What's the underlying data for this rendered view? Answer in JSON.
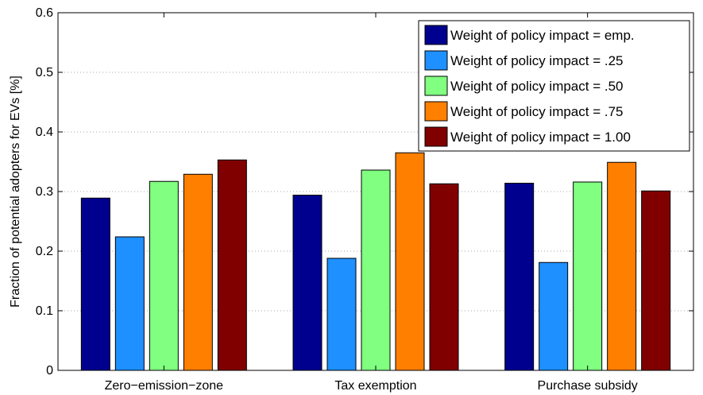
{
  "chart_data": {
    "type": "bar",
    "title": "",
    "xlabel": "",
    "ylabel": "Fraction of potential adopters for EVs [%]",
    "ylim": [
      0,
      0.6
    ],
    "yticks": [
      "0",
      "0.1",
      "0.2",
      "0.3",
      "0.4",
      "0.5",
      "0.6"
    ],
    "grid": "dotted-y",
    "legend_position": "top-right",
    "categories": [
      "Zero−emission−zone",
      "Tax exemption",
      "Purchase subsidy"
    ],
    "series": [
      {
        "name": "Weight of policy impact = emp.",
        "color": "#00008f",
        "values": [
          0.289,
          0.294,
          0.314
        ]
      },
      {
        "name": "Weight of policy impact = .25",
        "color": "#1e90ff",
        "values": [
          0.224,
          0.188,
          0.181
        ]
      },
      {
        "name": "Weight of policy impact = .50",
        "color": "#80ff80",
        "values": [
          0.317,
          0.336,
          0.316
        ]
      },
      {
        "name": "Weight of policy impact = .75",
        "color": "#ff7f00",
        "values": [
          0.329,
          0.365,
          0.349
        ]
      },
      {
        "name": "Weight of policy impact = 1.00",
        "color": "#800000",
        "values": [
          0.353,
          0.313,
          0.301
        ]
      }
    ]
  }
}
